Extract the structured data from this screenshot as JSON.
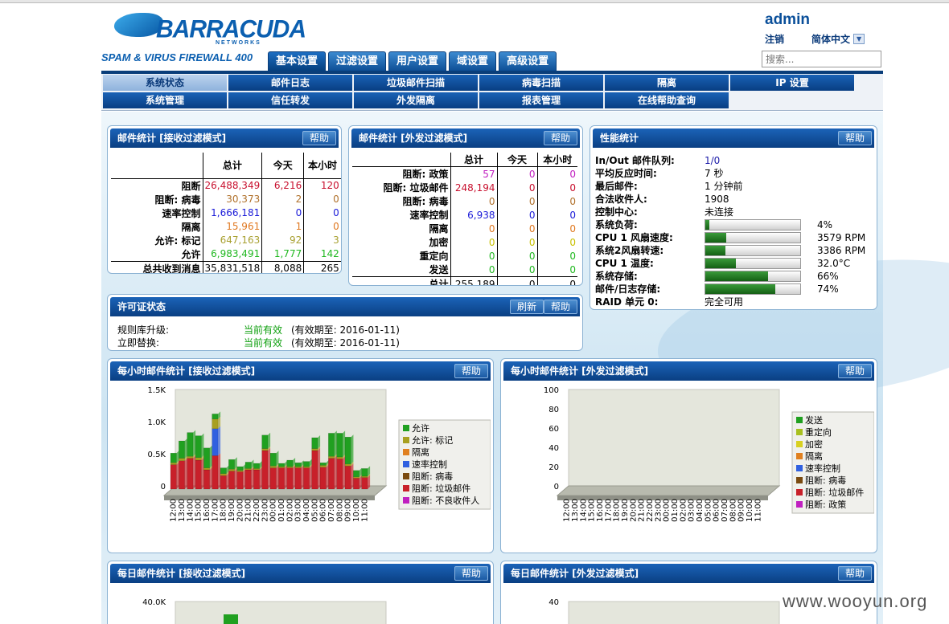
{
  "brand": {
    "logo_text": "BARRACUDA",
    "logo_sub": "NETWORKS",
    "product": "SPAM & VIRUS FIREWALL 400"
  },
  "main_tabs": [
    "基本设置",
    "过滤设置",
    "用户设置",
    "域设置",
    "高级设置"
  ],
  "user": {
    "name": "admin",
    "logout": "注销",
    "language": "简体中文",
    "search_placeholder": "搜索..."
  },
  "subnav": {
    "row1": [
      "系统状态",
      "邮件日志",
      "垃圾邮件扫描",
      "病毒扫描",
      "隔离",
      "IP 设置"
    ],
    "row2": [
      "系统管理",
      "信任转发",
      "外发隔离",
      "报表管理",
      "在线帮助查询"
    ]
  },
  "buttons": {
    "help": "帮助",
    "refresh": "刷新"
  },
  "inbound_stats": {
    "title": "邮件统计 [接收过滤模式]",
    "headers": [
      "总计",
      "今天",
      "本小时"
    ],
    "rows": [
      {
        "label": "阻断",
        "total": "26,488,349",
        "today": "6,216",
        "hour": "120"
      },
      {
        "label": "阻断: 病毒",
        "total": "30,373",
        "today": "2",
        "hour": "0"
      },
      {
        "label": "速率控制",
        "total": "1,666,181",
        "today": "0",
        "hour": "0"
      },
      {
        "label": "隔离",
        "total": "15,961",
        "today": "1",
        "hour": "0"
      },
      {
        "label": "允许: 标记",
        "total": "647,163",
        "today": "92",
        "hour": "3"
      },
      {
        "label": "允许",
        "total": "6,983,491",
        "today": "1,777",
        "hour": "142"
      }
    ],
    "total": {
      "label": "总共收到消息",
      "total": "35,831,518",
      "today": "8,088",
      "hour": "265"
    }
  },
  "outbound_stats": {
    "title": "邮件统计 [外发过滤模式]",
    "headers": [
      "总计",
      "今天",
      "本小时"
    ],
    "rows": [
      {
        "label": "阻断: 政策",
        "total": "57",
        "today": "0",
        "hour": "0"
      },
      {
        "label": "阻断: 垃圾邮件",
        "total": "248,194",
        "today": "0",
        "hour": "0"
      },
      {
        "label": "阻断: 病毒",
        "total": "0",
        "today": "0",
        "hour": "0"
      },
      {
        "label": "速率控制",
        "total": "6,938",
        "today": "0",
        "hour": "0"
      },
      {
        "label": "隔离",
        "total": "0",
        "today": "0",
        "hour": "0"
      },
      {
        "label": "加密",
        "total": "0",
        "today": "0",
        "hour": "0"
      },
      {
        "label": "重定向",
        "total": "0",
        "today": "0",
        "hour": "0"
      },
      {
        "label": "发送",
        "total": "0",
        "today": "0",
        "hour": "0"
      }
    ],
    "total": {
      "label": "总计",
      "total": "255,189",
      "today": "0",
      "hour": "0"
    }
  },
  "performance": {
    "title": "性能统计",
    "rows": [
      {
        "label": "In/Out 邮件队列:",
        "value": "1/0"
      },
      {
        "label": "平均反应时间:",
        "value": "7 秒"
      },
      {
        "label": "最后邮件:",
        "value": "1 分钟前"
      },
      {
        "label": "合法收件人:",
        "value": "1908"
      },
      {
        "label": "控制中心:",
        "value": "未连接"
      }
    ],
    "bars": [
      {
        "label": "系统负荷:",
        "value": "4%",
        "level": 0.04
      },
      {
        "label": "CPU 1 风扇速度:",
        "value": "3579 RPM",
        "level": 0.22
      },
      {
        "label": "系统2风扇转速:",
        "value": "3386 RPM",
        "level": 0.21
      },
      {
        "label": "CPU 1 温度:",
        "value": "32.0°C",
        "level": 0.32
      },
      {
        "label": "系统存储:",
        "value": "66%",
        "level": 0.66
      },
      {
        "label": "邮件/日志存储:",
        "value": "74%",
        "level": 0.74
      }
    ],
    "raid": {
      "label": "RAID 单元 0:",
      "value": "完全可用"
    }
  },
  "license": {
    "title": "许可证状态",
    "rows": [
      {
        "label": "规则库升级:",
        "status": "当前有效",
        "expiry": "(有效期至: 2016-01-11)"
      },
      {
        "label": "立即替换:",
        "status": "当前有效",
        "expiry": "(有效期至: 2016-01-11)"
      }
    ]
  },
  "hourly_in_title": "每小时邮件统计 [接收过滤模式]",
  "hourly_out_title": "每小时邮件统计 [外发过滤模式]",
  "daily_in_title": "每日邮件统计 [接收过滤模式]",
  "daily_out_title": "每日邮件统计 [外发过滤模式]",
  "colors": {
    "allow": "#20a020",
    "tagged": "#a8a020",
    "quarantine": "#e08020",
    "rate": "#3060e0",
    "virus": "#7a4a10",
    "spam": "#c8202a",
    "invalid": "#c020c0",
    "policy": "#c020c0",
    "send": "#20a020",
    "redirect": "#a8c020",
    "encrypt": "#d8d020"
  },
  "chart_data": [
    {
      "type": "bar",
      "stacked": true,
      "title": "每小时邮件统计 [接收过滤模式]",
      "ylim": [
        0,
        1500
      ],
      "yticks": [
        "1.5K",
        "1.0K",
        "0.5K",
        "0"
      ],
      "categories": [
        "12:00",
        "13:00",
        "14:00",
        "15:00",
        "16:00",
        "17:00",
        "18:00",
        "19:00",
        "20:00",
        "21:00",
        "22:00",
        "23:00",
        "00:00",
        "01:00",
        "02:00",
        "03:00",
        "04:00",
        "05:00",
        "06:00",
        "07:00",
        "08:00",
        "09:00",
        "10:00",
        "11:00"
      ],
      "series": [
        {
          "name": "阻断: 垃圾邮件",
          "color": "#c8202a",
          "values": [
            380,
            440,
            480,
            450,
            300,
            520,
            210,
            280,
            270,
            300,
            300,
            600,
            330,
            330,
            330,
            330,
            330,
            600,
            340,
            480,
            470,
            360,
            170,
            180
          ]
        },
        {
          "name": "阻断: 不良收件人",
          "color": "#c020c0",
          "values": [
            0,
            0,
            0,
            0,
            0,
            0,
            0,
            0,
            0,
            0,
            0,
            0,
            0,
            0,
            0,
            0,
            0,
            0,
            0,
            0,
            0,
            0,
            0,
            0
          ]
        },
        {
          "name": "阻断: 病毒",
          "color": "#7a4a10",
          "values": [
            0,
            0,
            0,
            0,
            0,
            0,
            0,
            0,
            0,
            0,
            0,
            0,
            0,
            0,
            0,
            0,
            0,
            0,
            0,
            0,
            0,
            0,
            0,
            0
          ]
        },
        {
          "name": "速率控制",
          "color": "#3060e0",
          "values": [
            0,
            0,
            0,
            0,
            0,
            420,
            0,
            0,
            0,
            0,
            0,
            0,
            0,
            0,
            0,
            0,
            0,
            0,
            0,
            0,
            0,
            0,
            0,
            0
          ]
        },
        {
          "name": "隔离",
          "color": "#e08020",
          "values": [
            0,
            0,
            0,
            0,
            0,
            0,
            0,
            0,
            0,
            0,
            0,
            0,
            0,
            0,
            0,
            0,
            0,
            0,
            0,
            0,
            0,
            0,
            0,
            0
          ]
        },
        {
          "name": "允许: 标记",
          "color": "#a8a020",
          "values": [
            30,
            40,
            30,
            40,
            30,
            150,
            30,
            30,
            20,
            20,
            20,
            30,
            30,
            20,
            20,
            20,
            20,
            30,
            30,
            30,
            30,
            30,
            20,
            20
          ]
        },
        {
          "name": "允许",
          "color": "#20a020",
          "values": [
            150,
            270,
            370,
            340,
            310,
            80,
            90,
            150,
            60,
            100,
            80,
            210,
            200,
            50,
            100,
            60,
            80,
            170,
            40,
            360,
            370,
            420,
            100,
            120
          ]
        }
      ]
    },
    {
      "type": "bar",
      "stacked": true,
      "title": "每小时邮件统计 [外发过滤模式]",
      "ylim": [
        0,
        100
      ],
      "yticks": [
        "100",
        "80",
        "60",
        "40",
        "20",
        "0"
      ],
      "categories": [
        "12:00",
        "13:00",
        "14:00",
        "15:00",
        "16:00",
        "17:00",
        "18:00",
        "19:00",
        "20:00",
        "21:00",
        "22:00",
        "23:00",
        "00:00",
        "01:00",
        "02:00",
        "03:00",
        "04:00",
        "05:00",
        "06:00",
        "07:00",
        "08:00",
        "09:00",
        "10:00",
        "11:00"
      ],
      "series": [
        {
          "name": "发送",
          "color": "#20a020",
          "values": [
            0,
            0,
            0,
            0,
            0,
            0,
            0,
            0,
            0,
            0,
            0,
            0,
            0,
            0,
            0,
            0,
            0,
            0,
            0,
            0,
            0,
            0,
            0,
            0
          ]
        },
        {
          "name": "重定向",
          "color": "#a8c020",
          "values": [
            0,
            0,
            0,
            0,
            0,
            0,
            0,
            0,
            0,
            0,
            0,
            0,
            0,
            0,
            0,
            0,
            0,
            0,
            0,
            0,
            0,
            0,
            0,
            0
          ]
        },
        {
          "name": "加密",
          "color": "#d8d020",
          "values": [
            0,
            0,
            0,
            0,
            0,
            0,
            0,
            0,
            0,
            0,
            0,
            0,
            0,
            0,
            0,
            0,
            0,
            0,
            0,
            0,
            0,
            0,
            0,
            0
          ]
        },
        {
          "name": "隔离",
          "color": "#e08020",
          "values": [
            0,
            0,
            0,
            0,
            0,
            0,
            0,
            0,
            0,
            0,
            0,
            0,
            0,
            0,
            0,
            0,
            0,
            0,
            0,
            0,
            0,
            0,
            0,
            0
          ]
        },
        {
          "name": "速率控制",
          "color": "#3060e0",
          "values": [
            0,
            0,
            0,
            0,
            0,
            0,
            0,
            0,
            0,
            0,
            0,
            0,
            0,
            0,
            0,
            0,
            0,
            0,
            0,
            0,
            0,
            0,
            0,
            0
          ]
        },
        {
          "name": "阻断: 病毒",
          "color": "#7a4a10",
          "values": [
            0,
            0,
            0,
            0,
            0,
            0,
            0,
            0,
            0,
            0,
            0,
            0,
            0,
            0,
            0,
            0,
            0,
            0,
            0,
            0,
            0,
            0,
            0,
            0
          ]
        },
        {
          "name": "阻断: 垃圾邮件",
          "color": "#c8202a",
          "values": [
            0,
            0,
            0,
            0,
            0,
            0,
            0,
            0,
            0,
            0,
            0,
            0,
            0,
            0,
            0,
            0,
            0,
            0,
            0,
            0,
            0,
            0,
            0,
            0
          ]
        },
        {
          "name": "阻断: 政策",
          "color": "#c020c0",
          "values": [
            0,
            0,
            0,
            0,
            0,
            0,
            0,
            0,
            0,
            0,
            0,
            0,
            0,
            0,
            0,
            0,
            0,
            0,
            0,
            0,
            0,
            0,
            0,
            0
          ]
        }
      ]
    },
    {
      "type": "bar",
      "stacked": true,
      "title": "每日邮件统计 [接收过滤模式]",
      "ylim": [
        0,
        40000
      ],
      "yticks": [
        "40.0K"
      ]
    },
    {
      "type": "bar",
      "stacked": true,
      "title": "每日邮件统计 [外发过滤模式]",
      "ylim": [
        0,
        40
      ],
      "yticks": [
        "40"
      ]
    }
  ],
  "watermark": "www.wooyun.org"
}
